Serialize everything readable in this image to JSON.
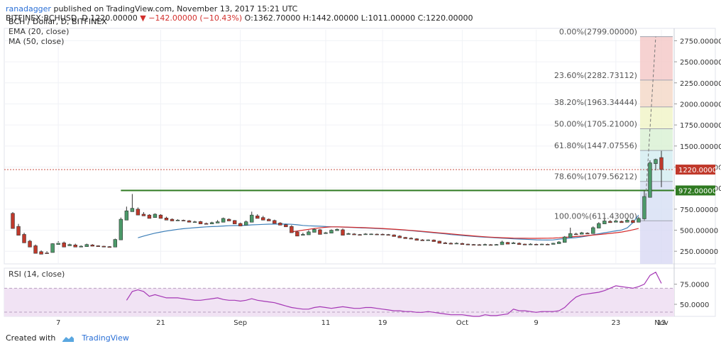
{
  "header": {
    "user": "ranadagger",
    "published": "published on TradingView.com, November 13, 2017 15:21 UTC",
    "line2": "BITFINEX:BCHUSD, D 1220.00000",
    "change": "▼ −142.00000 (−10.43%)",
    "ohlc": "O:1362.70000  H:1442.00000  L:1011.00000  C:1220.00000"
  },
  "symbol": "BCH / Dollar, D, BITFINEX",
  "indicators": [
    "EMA (20, close)",
    "MA (50, close)"
  ],
  "rsi_label": "RSI (14, close)",
  "footer": {
    "created_with": "Created with",
    "brand": "TradingView"
  },
  "colors": {
    "up": "#4c9a6a",
    "down": "#c0392b",
    "ema": "#3d7fb8",
    "ma": "#d62a2a",
    "rsi": "#a537b5",
    "hline": "#2f7a21",
    "price_line": "#c0392b"
  },
  "chart_data": [
    {
      "type": "candlestick",
      "title": "",
      "x_tick_labels": [
        "7",
        "21",
        "Sep",
        "11",
        "19",
        "Oct",
        "9",
        "23",
        "Nov",
        "13"
      ],
      "y_ticks": [
        250,
        500,
        750,
        1000,
        1250,
        1500,
        1750,
        2000,
        2250,
        2500,
        2750
      ],
      "y_tick_labels": [
        "250.00000",
        "500.00000",
        "750.00000",
        "1000.00000",
        "1250.00000",
        "1500.00000",
        "1750.00000",
        "2000.00000",
        "2250.00000",
        "2500.00000",
        "2750.00000"
      ],
      "ylim": [
        100,
        2880
      ],
      "current_price": {
        "value": 1220,
        "label": "1220.00000"
      },
      "horizontal_line": {
        "value": 972,
        "label": "972.00000"
      },
      "fib_levels": [
        {
          "ratio": "0.00%",
          "price": "2799.00000",
          "value": 2799
        },
        {
          "ratio": "23.60%",
          "price": "2282.73112",
          "value": 2282.73112
        },
        {
          "ratio": "38.20%",
          "price": "1963.34444",
          "value": 1963.34444
        },
        {
          "ratio": "50.00%",
          "price": "1705.21000",
          "value": 1705.21
        },
        {
          "ratio": "61.80%",
          "price": "1447.07556",
          "value": 1447.07556
        },
        {
          "ratio": "78.60%",
          "price": "1079.56212",
          "value": 1079.56212
        },
        {
          "ratio": "100.00%",
          "price": "611.43000",
          "value": 611.43
        }
      ],
      "candles": [
        [
          700,
          520,
          715,
          560
        ],
        [
          545,
          440,
          575,
          460
        ],
        [
          450,
          350,
          470,
          380
        ],
        [
          370,
          300,
          385,
          320
        ],
        [
          315,
          225,
          330,
          245
        ],
        [
          245,
          215,
          260,
          230
        ],
        [
          230,
          225,
          250,
          235
        ],
        [
          235,
          340,
          345,
          325
        ],
        [
          330,
          345,
          370,
          355
        ],
        [
          350,
          300,
          365,
          315
        ],
        [
          315,
          330,
          340,
          325
        ],
        [
          325,
          300,
          340,
          305
        ],
        [
          300,
          310,
          320,
          305
        ],
        [
          305,
          330,
          340,
          325
        ],
        [
          325,
          310,
          335,
          315
        ],
        [
          315,
          305,
          320,
          310
        ],
        [
          310,
          300,
          315,
          305
        ],
        [
          305,
          295,
          310,
          300
        ],
        [
          300,
          390,
          400,
          385
        ],
        [
          385,
          630,
          650,
          620
        ],
        [
          620,
          730,
          780,
          720
        ],
        [
          720,
          760,
          930,
          750
        ],
        [
          750,
          680,
          770,
          690
        ],
        [
          690,
          670,
          715,
          680
        ],
        [
          680,
          640,
          690,
          650
        ],
        [
          650,
          690,
          700,
          680
        ],
        [
          680,
          640,
          690,
          645
        ],
        [
          645,
          620,
          660,
          630
        ],
        [
          630,
          610,
          640,
          615
        ],
        [
          615,
          620,
          630,
          618
        ],
        [
          618,
          610,
          625,
          612
        ],
        [
          612,
          595,
          620,
          598
        ],
        [
          598,
          600,
          610,
          602
        ],
        [
          602,
          575,
          610,
          580
        ],
        [
          580,
          570,
          590,
          575
        ],
        [
          575,
          590,
          600,
          585
        ],
        [
          585,
          600,
          620,
          595
        ],
        [
          595,
          640,
          650,
          630
        ],
        [
          630,
          610,
          640,
          615
        ],
        [
          615,
          575,
          620,
          580
        ],
        [
          580,
          550,
          590,
          560
        ],
        [
          560,
          600,
          615,
          595
        ],
        [
          595,
          680,
          720,
          670
        ],
        [
          670,
          640,
          690,
          650
        ],
        [
          650,
          620,
          670,
          630
        ],
        [
          630,
          610,
          640,
          615
        ],
        [
          615,
          580,
          625,
          585
        ],
        [
          585,
          560,
          595,
          565
        ],
        [
          565,
          540,
          575,
          545
        ],
        [
          545,
          470,
          560,
          480
        ],
        [
          480,
          430,
          490,
          440
        ],
        [
          440,
          450,
          470,
          445
        ],
        [
          445,
          480,
          500,
          475
        ],
        [
          475,
          510,
          520,
          505
        ],
        [
          505,
          450,
          515,
          460
        ],
        [
          460,
          470,
          480,
          465
        ],
        [
          465,
          500,
          510,
          495
        ],
        [
          495,
          510,
          520,
          505
        ],
        [
          505,
          440,
          520,
          450
        ],
        [
          450,
          460,
          470,
          455
        ],
        [
          455,
          445,
          465,
          448
        ],
        [
          448,
          445,
          455,
          447
        ],
        [
          447,
          455,
          465,
          452
        ],
        [
          452,
          455,
          460,
          453
        ],
        [
          453,
          450,
          460,
          452
        ],
        [
          452,
          445,
          460,
          448
        ],
        [
          448,
          440,
          455,
          444
        ],
        [
          444,
          425,
          450,
          430
        ],
        [
          430,
          410,
          440,
          415
        ],
        [
          415,
          400,
          420,
          405
        ],
        [
          405,
          395,
          415,
          398
        ],
        [
          398,
          380,
          405,
          385
        ],
        [
          385,
          375,
          395,
          380
        ],
        [
          380,
          385,
          390,
          383
        ],
        [
          383,
          365,
          390,
          370
        ],
        [
          370,
          345,
          375,
          350
        ],
        [
          350,
          340,
          360,
          345
        ],
        [
          345,
          335,
          355,
          340
        ],
        [
          340,
          345,
          355,
          343
        ],
        [
          343,
          330,
          350,
          335
        ],
        [
          335,
          325,
          340,
          330
        ],
        [
          330,
          325,
          335,
          328
        ],
        [
          328,
          320,
          335,
          323
        ],
        [
          323,
          330,
          340,
          328
        ],
        [
          328,
          325,
          335,
          327
        ],
        [
          327,
          330,
          335,
          328
        ],
        [
          328,
          360,
          375,
          355
        ],
        [
          355,
          335,
          360,
          340
        ],
        [
          340,
          350,
          360,
          345
        ],
        [
          345,
          330,
          355,
          335
        ],
        [
          335,
          325,
          340,
          330
        ],
        [
          330,
          335,
          345,
          333
        ],
        [
          333,
          330,
          340,
          331
        ],
        [
          331,
          335,
          340,
          333
        ],
        [
          333,
          330,
          340,
          332
        ],
        [
          332,
          345,
          350,
          340
        ],
        [
          340,
          360,
          370,
          355
        ],
        [
          355,
          420,
          430,
          415
        ],
        [
          415,
          460,
          530,
          455
        ],
        [
          455,
          450,
          470,
          452
        ],
        [
          452,
          470,
          480,
          465
        ],
        [
          465,
          455,
          475,
          460
        ],
        [
          460,
          530,
          545,
          525
        ],
        [
          525,
          580,
          595,
          575
        ],
        [
          575,
          610,
          635,
          605
        ],
        [
          605,
          590,
          620,
          595
        ],
        [
          595,
          610,
          625,
          605
        ],
        [
          605,
          590,
          615,
          595
        ],
        [
          595,
          620,
          640,
          615
        ],
        [
          615,
          590,
          625,
          595
        ],
        [
          595,
          640,
          660,
          635
        ],
        [
          635,
          900,
          970,
          890
        ],
        [
          890,
          1300,
          1330,
          1290
        ],
        [
          1290,
          1340,
          1350,
          1210
        ],
        [
          1362.7,
          1220,
          1442,
          1011
        ]
      ],
      "ema20": [
        null,
        null,
        null,
        null,
        null,
        null,
        null,
        null,
        null,
        null,
        null,
        null,
        null,
        null,
        null,
        null,
        null,
        null,
        null,
        null,
        null,
        null,
        410,
        430,
        448,
        465,
        478,
        490,
        500,
        510,
        518,
        524,
        530,
        535,
        540,
        543,
        546,
        550,
        553,
        555,
        556,
        558,
        563,
        566,
        569,
        572,
        573,
        573,
        573,
        570,
        564,
        557,
        552,
        550,
        547,
        543,
        541,
        540,
        537,
        534,
        531,
        528,
        526,
        523,
        520,
        517,
        514,
        510,
        505,
        500,
        494,
        488,
        482,
        476,
        470,
        463,
        456,
        449,
        443,
        437,
        432,
        426,
        421,
        417,
        413,
        409,
        405,
        402,
        398,
        395,
        392,
        389,
        386,
        384,
        383,
        385,
        393,
        400,
        406,
        412,
        421,
        432,
        445,
        457,
        470,
        481,
        492,
        502,
        528,
        590,
        680
      ],
      "ma50": [
        null,
        null,
        null,
        null,
        null,
        null,
        null,
        null,
        null,
        null,
        null,
        null,
        null,
        null,
        null,
        null,
        null,
        null,
        null,
        null,
        null,
        null,
        null,
        null,
        null,
        null,
        null,
        null,
        null,
        null,
        null,
        null,
        null,
        null,
        null,
        null,
        null,
        null,
        null,
        null,
        null,
        null,
        null,
        null,
        null,
        null,
        null,
        null,
        null,
        480,
        490,
        500,
        510,
        520,
        528,
        535,
        540,
        540,
        538,
        536,
        534,
        532,
        530,
        527,
        524,
        520,
        516,
        512,
        508,
        503,
        498,
        492,
        486,
        480,
        474,
        468,
        462,
        456,
        450,
        444,
        438,
        432,
        427,
        422,
        418,
        414,
        411,
        408,
        406,
        405,
        404,
        403,
        403,
        404,
        405,
        407,
        410,
        415,
        420,
        425,
        430,
        436,
        442,
        448,
        455,
        462,
        470,
        478,
        490,
        505,
        520
      ]
    },
    {
      "type": "line",
      "title": "RSI (14, close)",
      "y_ticks": [
        50,
        75
      ],
      "y_tick_labels": [
        "50.0000",
        "75.0000"
      ],
      "ylim": [
        35,
        95
      ],
      "band": [
        30,
        70
      ],
      "values": [
        null,
        null,
        null,
        null,
        null,
        null,
        null,
        null,
        null,
        null,
        null,
        null,
        null,
        null,
        null,
        null,
        null,
        null,
        null,
        null,
        55,
        66,
        68,
        66,
        60,
        62,
        60,
        58,
        58,
        58,
        57,
        56,
        55,
        55,
        56,
        57,
        58,
        56,
        55,
        55,
        54,
        55,
        57,
        55,
        54,
        53,
        52,
        50,
        48,
        46,
        45,
        44,
        44,
        46,
        47,
        46,
        45,
        46,
        47,
        46,
        45,
        45,
        46,
        46,
        45,
        44,
        43,
        42,
        42,
        41,
        41,
        40,
        40,
        41,
        40,
        39,
        38,
        37,
        37,
        37,
        36,
        35,
        35,
        37,
        36,
        36,
        37,
        38,
        44,
        42,
        42,
        41,
        40,
        41,
        41,
        41,
        42,
        46,
        53,
        59,
        62,
        63,
        64,
        65,
        67,
        70,
        73,
        72,
        71,
        70,
        72,
        75,
        86,
        90,
        76
      ]
    }
  ]
}
